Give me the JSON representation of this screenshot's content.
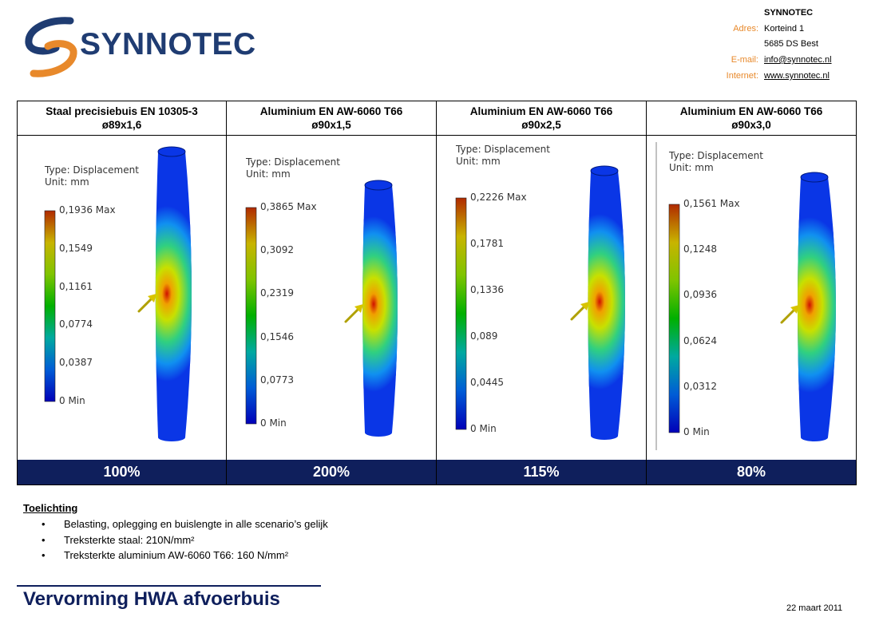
{
  "header": {
    "logo_text": "SYNNOTEC",
    "brand_colors": {
      "navy": "#1f3c72",
      "orange": "#e8892b"
    },
    "contact": {
      "company": "SYNNOTEC",
      "address_label": "Adres:",
      "address_line1": "Korteind 1",
      "address_line2": "5685 DS Best",
      "email_label": "E-mail:",
      "email": "info@synnotec.nl",
      "internet_label": "Internet:",
      "website": "www.synnotec.nl"
    }
  },
  "scenarios": [
    {
      "title_line1": "Staal precisiebuis EN 10305-3",
      "title_line2": "ø89x1,6",
      "type_label": "Type: Displacement",
      "unit_label": "Unit: mm",
      "legend": [
        "0,1936 Max",
        "0,1549",
        "0,1161",
        "0,0774",
        "0,0387",
        "0 Min"
      ],
      "result": "100%"
    },
    {
      "title_line1": "Aluminium EN AW-6060 T66",
      "title_line2": "ø90x1,5",
      "type_label": "Type: Displacement",
      "unit_label": "Unit: mm",
      "legend": [
        "0,3865 Max",
        "0,3092",
        "0,2319",
        "0,1546",
        "0,0773",
        "0 Min"
      ],
      "result": "200%"
    },
    {
      "title_line1": "Aluminium EN AW-6060 T66",
      "title_line2": "ø90x2,5",
      "type_label": "Type: Displacement",
      "unit_label": "Unit: mm",
      "legend": [
        "0,2226 Max",
        "0,1781",
        "0,1336",
        "0,089",
        "0,0445",
        "0 Min"
      ],
      "result": "115%"
    },
    {
      "title_line1": "Aluminium EN AW-6060 T66",
      "title_line2": "ø90x3,0",
      "type_label": "Type: Displacement",
      "unit_label": "Unit: mm",
      "legend": [
        "0,1561 Max",
        "0,1248",
        "0,0936",
        "0,0624",
        "0,0312",
        "0 Min"
      ],
      "result": "80%"
    }
  ],
  "notes": {
    "title": "Toelichting",
    "items": [
      "Belasting, oplegging en buislengte in alle scenario’s gelijk",
      "Treksterkte staal: 210N/mm²",
      "Treksterkte aluminium AW-6060 T66: 160 N/mm²"
    ]
  },
  "footer": {
    "title": "Vervorming HWA afvoerbuis",
    "date": "22 maart 2011",
    "accent_color": "#0f1f5c"
  }
}
